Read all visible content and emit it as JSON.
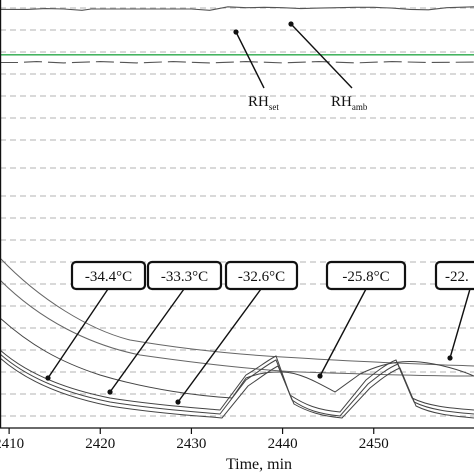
{
  "chart_data": {
    "type": "line",
    "xlabel": "Time, min",
    "x_ticks": [
      2410,
      2420,
      2430,
      2440,
      2450
    ],
    "xlim": [
      2409,
      2461
    ],
    "grid": "dashed horizontal",
    "annotations": {
      "rh_set": {
        "main": "RH",
        "sub": "set",
        "x": 2432.5
      },
      "rh_amb": {
        "main": "RH",
        "sub": "amb",
        "x": 2438
      }
    },
    "temperature_labels": [
      {
        "text": "-34.4°C",
        "x": 2413
      },
      {
        "text": "-33.3°C",
        "x": 2416
      },
      {
        "text": "-32.6°C",
        "x": 2427
      },
      {
        "text": "-25.8°C",
        "x": 2442
      },
      {
        "text": "-22.",
        "x": 2459
      }
    ],
    "series": [
      {
        "color": "#555555",
        "x": [
          2409,
          2412,
          2414,
          2416,
          2418,
          2419,
          2420,
          2422,
          2424,
          2426,
          2428,
          2430,
          2432,
          2433,
          2434,
          2436,
          2438,
          2440,
          2442,
          2444,
          2446,
          2448,
          2450,
          2452,
          2454,
          2456,
          2458,
          2461
        ],
        "y": [
          97.8,
          97.8,
          98.0,
          97.9,
          97.6,
          97.9,
          97.9,
          97.9,
          97.9,
          97.9,
          97.9,
          97.9,
          97.6,
          98.0,
          98.4,
          98.2,
          98.3,
          98.2,
          98.0,
          98.1,
          98.2,
          98.3,
          98.3,
          98.1,
          97.8,
          97.7,
          98.2,
          98.4
        ]
      },
      {
        "color": "#2aa84a",
        "x": [
          2409,
          2461
        ],
        "y": [
          87.2,
          87.2
        ]
      },
      {
        "color": "#555555",
        "x": [
          2409,
          2411,
          2413,
          2416,
          2420,
          2424,
          2428,
          2432,
          2436,
          2440,
          2444,
          2448,
          2452,
          2456,
          2461
        ],
        "y": [
          85.4,
          85.4,
          85.6,
          85.3,
          85.6,
          85.3,
          85.6,
          85.3,
          85.6,
          85.3,
          85.6,
          85.3,
          85.6,
          85.4,
          85.5
        ]
      }
    ]
  }
}
